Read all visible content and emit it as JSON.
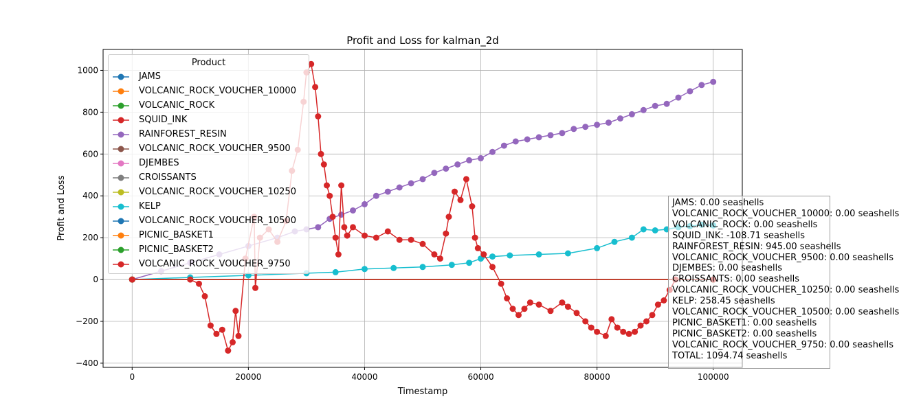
{
  "chart_data": {
    "type": "line",
    "title": "Profit and Loss for kalman_2d",
    "xlabel": "Timestamp",
    "ylabel": "Profit and Loss",
    "xlim": [
      -5000,
      105000
    ],
    "ylim": [
      -420,
      1100
    ],
    "x_ticks": [
      0,
      20000,
      40000,
      60000,
      80000,
      100000
    ],
    "x_tick_labels": [
      "0",
      "20000",
      "40000",
      "60000",
      "80000",
      "100000"
    ],
    "y_ticks": [
      -400,
      -200,
      0,
      200,
      400,
      600,
      800,
      1000
    ],
    "y_tick_labels": [
      "−400",
      "−200",
      "0",
      "200",
      "400",
      "600",
      "800",
      "1000"
    ],
    "grid": true,
    "legend_title": "Product",
    "legend_placement": "top-left",
    "series": [
      {
        "name": "JAMS",
        "color": "#1f77b4",
        "x": [
          0,
          100000
        ],
        "values": [
          0,
          0
        ]
      },
      {
        "name": "VOLCANIC_ROCK_VOUCHER_10000",
        "color": "#ff7f0e",
        "x": [
          0,
          100000
        ],
        "values": [
          0,
          0
        ]
      },
      {
        "name": "VOLCANIC_ROCK",
        "color": "#2ca02c",
        "x": [
          0,
          100000
        ],
        "values": [
          0,
          0
        ]
      },
      {
        "name": "SQUID_INK",
        "color": "#d62728",
        "x": [
          0,
          10000,
          11500,
          12500,
          13500,
          14500,
          15500,
          16500,
          17300,
          17800,
          18300,
          19500,
          21000,
          21200,
          22000,
          23500,
          25000,
          26500,
          27500,
          28500,
          29500,
          30000,
          30800,
          31500,
          32000,
          32500,
          33000,
          33500,
          34000,
          34500,
          35000,
          35500,
          36000,
          36500,
          37000,
          38000,
          40000,
          42000,
          44000,
          46000,
          48000,
          50000,
          52000,
          53000,
          54000,
          54500,
          55500,
          56500,
          57500,
          58500,
          59000,
          59500,
          60500,
          62000,
          63500,
          64500,
          65500,
          66500,
          67500,
          68500,
          70000,
          72000,
          74000,
          75000,
          76500,
          78000,
          79000,
          80000,
          81500,
          82500,
          83500,
          84500,
          85500,
          86500,
          87500,
          88500,
          89500,
          90500,
          91500,
          92500,
          93500
        ],
        "values": [
          0,
          0,
          -20,
          -80,
          -220,
          -260,
          -240,
          -340,
          -300,
          -150,
          -270,
          100,
          300,
          -40,
          200,
          240,
          180,
          280,
          520,
          620,
          850,
          990,
          1030,
          920,
          780,
          600,
          550,
          450,
          400,
          300,
          200,
          120,
          450,
          250,
          210,
          250,
          210,
          200,
          230,
          190,
          190,
          170,
          120,
          100,
          220,
          300,
          420,
          380,
          480,
          350,
          200,
          150,
          120,
          60,
          -20,
          -90,
          -140,
          -170,
          -140,
          -110,
          -120,
          -150,
          -110,
          -130,
          -160,
          -200,
          -230,
          -250,
          -270,
          -190,
          -230,
          -250,
          -260,
          -250,
          -220,
          -200,
          -170,
          -120,
          -100,
          -50,
          0
        ]
      },
      {
        "name": "RAINFOREST_RESIN",
        "color": "#9467bd",
        "x": [
          0,
          5000,
          10000,
          15000,
          20000,
          25000,
          28000,
          30000,
          32000,
          34000,
          36000,
          38000,
          40000,
          42000,
          44000,
          46000,
          48000,
          50000,
          52000,
          54000,
          56000,
          58000,
          60000,
          62000,
          64000,
          66000,
          68000,
          70000,
          72000,
          74000,
          76000,
          78000,
          80000,
          82000,
          84000,
          86000,
          88000,
          90000,
          92000,
          94000,
          96000,
          98000,
          100000
        ],
        "values": [
          0,
          40,
          80,
          120,
          160,
          200,
          230,
          240,
          250,
          290,
          310,
          330,
          360,
          400,
          420,
          440,
          460,
          480,
          510,
          530,
          550,
          570,
          580,
          610,
          640,
          660,
          670,
          680,
          690,
          700,
          720,
          730,
          740,
          750,
          770,
          790,
          810,
          830,
          840,
          870,
          900,
          930,
          945
        ]
      },
      {
        "name": "VOLCANIC_ROCK_VOUCHER_9500",
        "color": "#8c564b",
        "x": [
          0,
          100000
        ],
        "values": [
          0,
          0
        ]
      },
      {
        "name": "DJEMBES",
        "color": "#e377c2",
        "x": [
          0,
          100000
        ],
        "values": [
          0,
          0
        ]
      },
      {
        "name": "CROISSANTS",
        "color": "#7f7f7f",
        "x": [
          0,
          100000
        ],
        "values": [
          0,
          0
        ]
      },
      {
        "name": "VOLCANIC_ROCK_VOUCHER_10250",
        "color": "#bcbd22",
        "x": [
          0,
          100000
        ],
        "values": [
          0,
          0
        ]
      },
      {
        "name": "KELP",
        "color": "#17becf",
        "x": [
          0,
          10000,
          20000,
          30000,
          35000,
          40000,
          45000,
          50000,
          55000,
          58000,
          60000,
          62000,
          65000,
          70000,
          75000,
          80000,
          83000,
          86000,
          88000,
          90000,
          92000,
          94000,
          96000,
          98000,
          100000
        ],
        "values": [
          0,
          10,
          20,
          30,
          35,
          50,
          55,
          60,
          70,
          80,
          100,
          110,
          115,
          120,
          125,
          150,
          180,
          200,
          240,
          235,
          240,
          250,
          255,
          262,
          258.45
        ]
      },
      {
        "name": "VOLCANIC_ROCK_VOUCHER_10500",
        "color": "#1f77b4",
        "x": [
          0,
          100000
        ],
        "values": [
          0,
          0
        ]
      },
      {
        "name": "PICNIC_BASKET1",
        "color": "#ff7f0e",
        "x": [
          0,
          100000
        ],
        "values": [
          0,
          0
        ]
      },
      {
        "name": "PICNIC_BASKET2",
        "color": "#2ca02c",
        "x": [
          0,
          100000
        ],
        "values": [
          0,
          0
        ]
      },
      {
        "name": "VOLCANIC_ROCK_VOUCHER_9750",
        "color": "#d62728",
        "x": [
          0,
          100000
        ],
        "values": [
          0,
          0
        ]
      }
    ]
  },
  "summary_lines": [
    "JAMS: 0.00 seashells",
    "VOLCANIC_ROCK_VOUCHER_10000: 0.00 seashells",
    "VOLCANIC_ROCK: 0.00 seashells",
    "SQUID_INK: -108.71 seashells",
    "RAINFOREST_RESIN: 945.00 seashells",
    "VOLCANIC_ROCK_VOUCHER_9500: 0.00 seashells",
    "DJEMBES: 0.00 seashells",
    "CROISSANTS: 0.00 seashells",
    "VOLCANIC_ROCK_VOUCHER_10250: 0.00 seashells",
    "KELP: 258.45 seashells",
    "VOLCANIC_ROCK_VOUCHER_10500: 0.00 seashells",
    "PICNIC_BASKET1: 0.00 seashells",
    "PICNIC_BASKET2: 0.00 seashells",
    "VOLCANIC_ROCK_VOUCHER_9750: 0.00 seashells",
    "TOTAL: 1094.74 seashells"
  ]
}
